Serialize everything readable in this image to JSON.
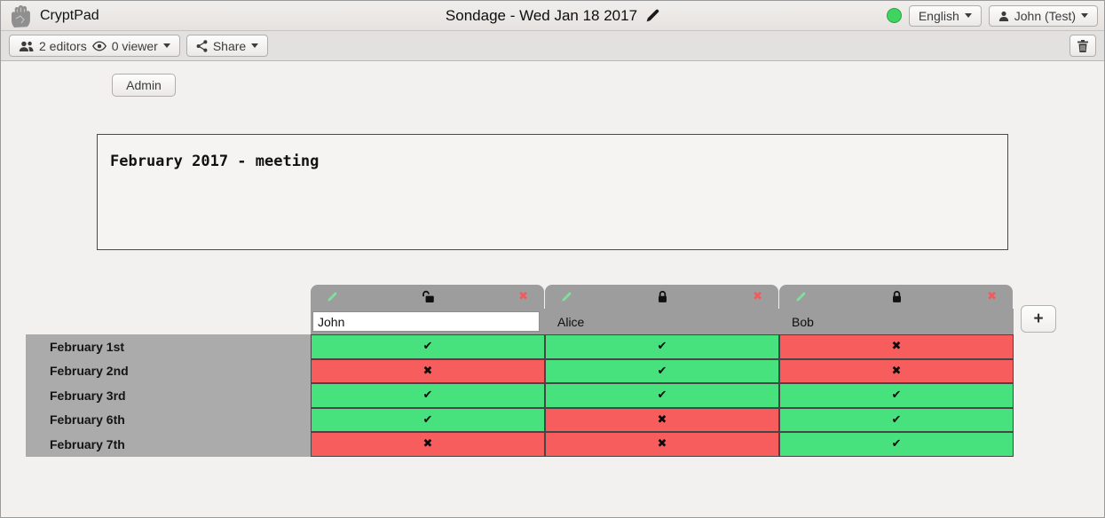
{
  "topbar": {
    "app_name": "CryptPad",
    "doc_title": "Sondage - Wed Jan 18 2017",
    "language_label": "English",
    "user_label": "John (Test)"
  },
  "toolbar": {
    "editors_label": "2 editors",
    "viewer_label": "0 viewer",
    "share_label": "Share"
  },
  "admin_label": "Admin",
  "description_text": "February 2017 - meeting",
  "poll": {
    "columns": [
      {
        "name": "John",
        "editable": true,
        "locked": false
      },
      {
        "name": "Alice",
        "editable": false,
        "locked": true
      },
      {
        "name": "Bob",
        "editable": false,
        "locked": true
      }
    ],
    "rows": [
      "February 1st",
      "February 2nd",
      "February 3rd",
      "February 6th",
      "February 7th"
    ],
    "votes": [
      [
        1,
        1,
        0
      ],
      [
        0,
        1,
        0
      ],
      [
        1,
        1,
        1
      ],
      [
        1,
        0,
        1
      ],
      [
        0,
        0,
        1
      ]
    ],
    "marks": {
      "yes": "✔",
      "no": "✖"
    },
    "colors": {
      "yes": "#47E17D",
      "no": "#F85D5D"
    },
    "add_column_label": "+"
  }
}
